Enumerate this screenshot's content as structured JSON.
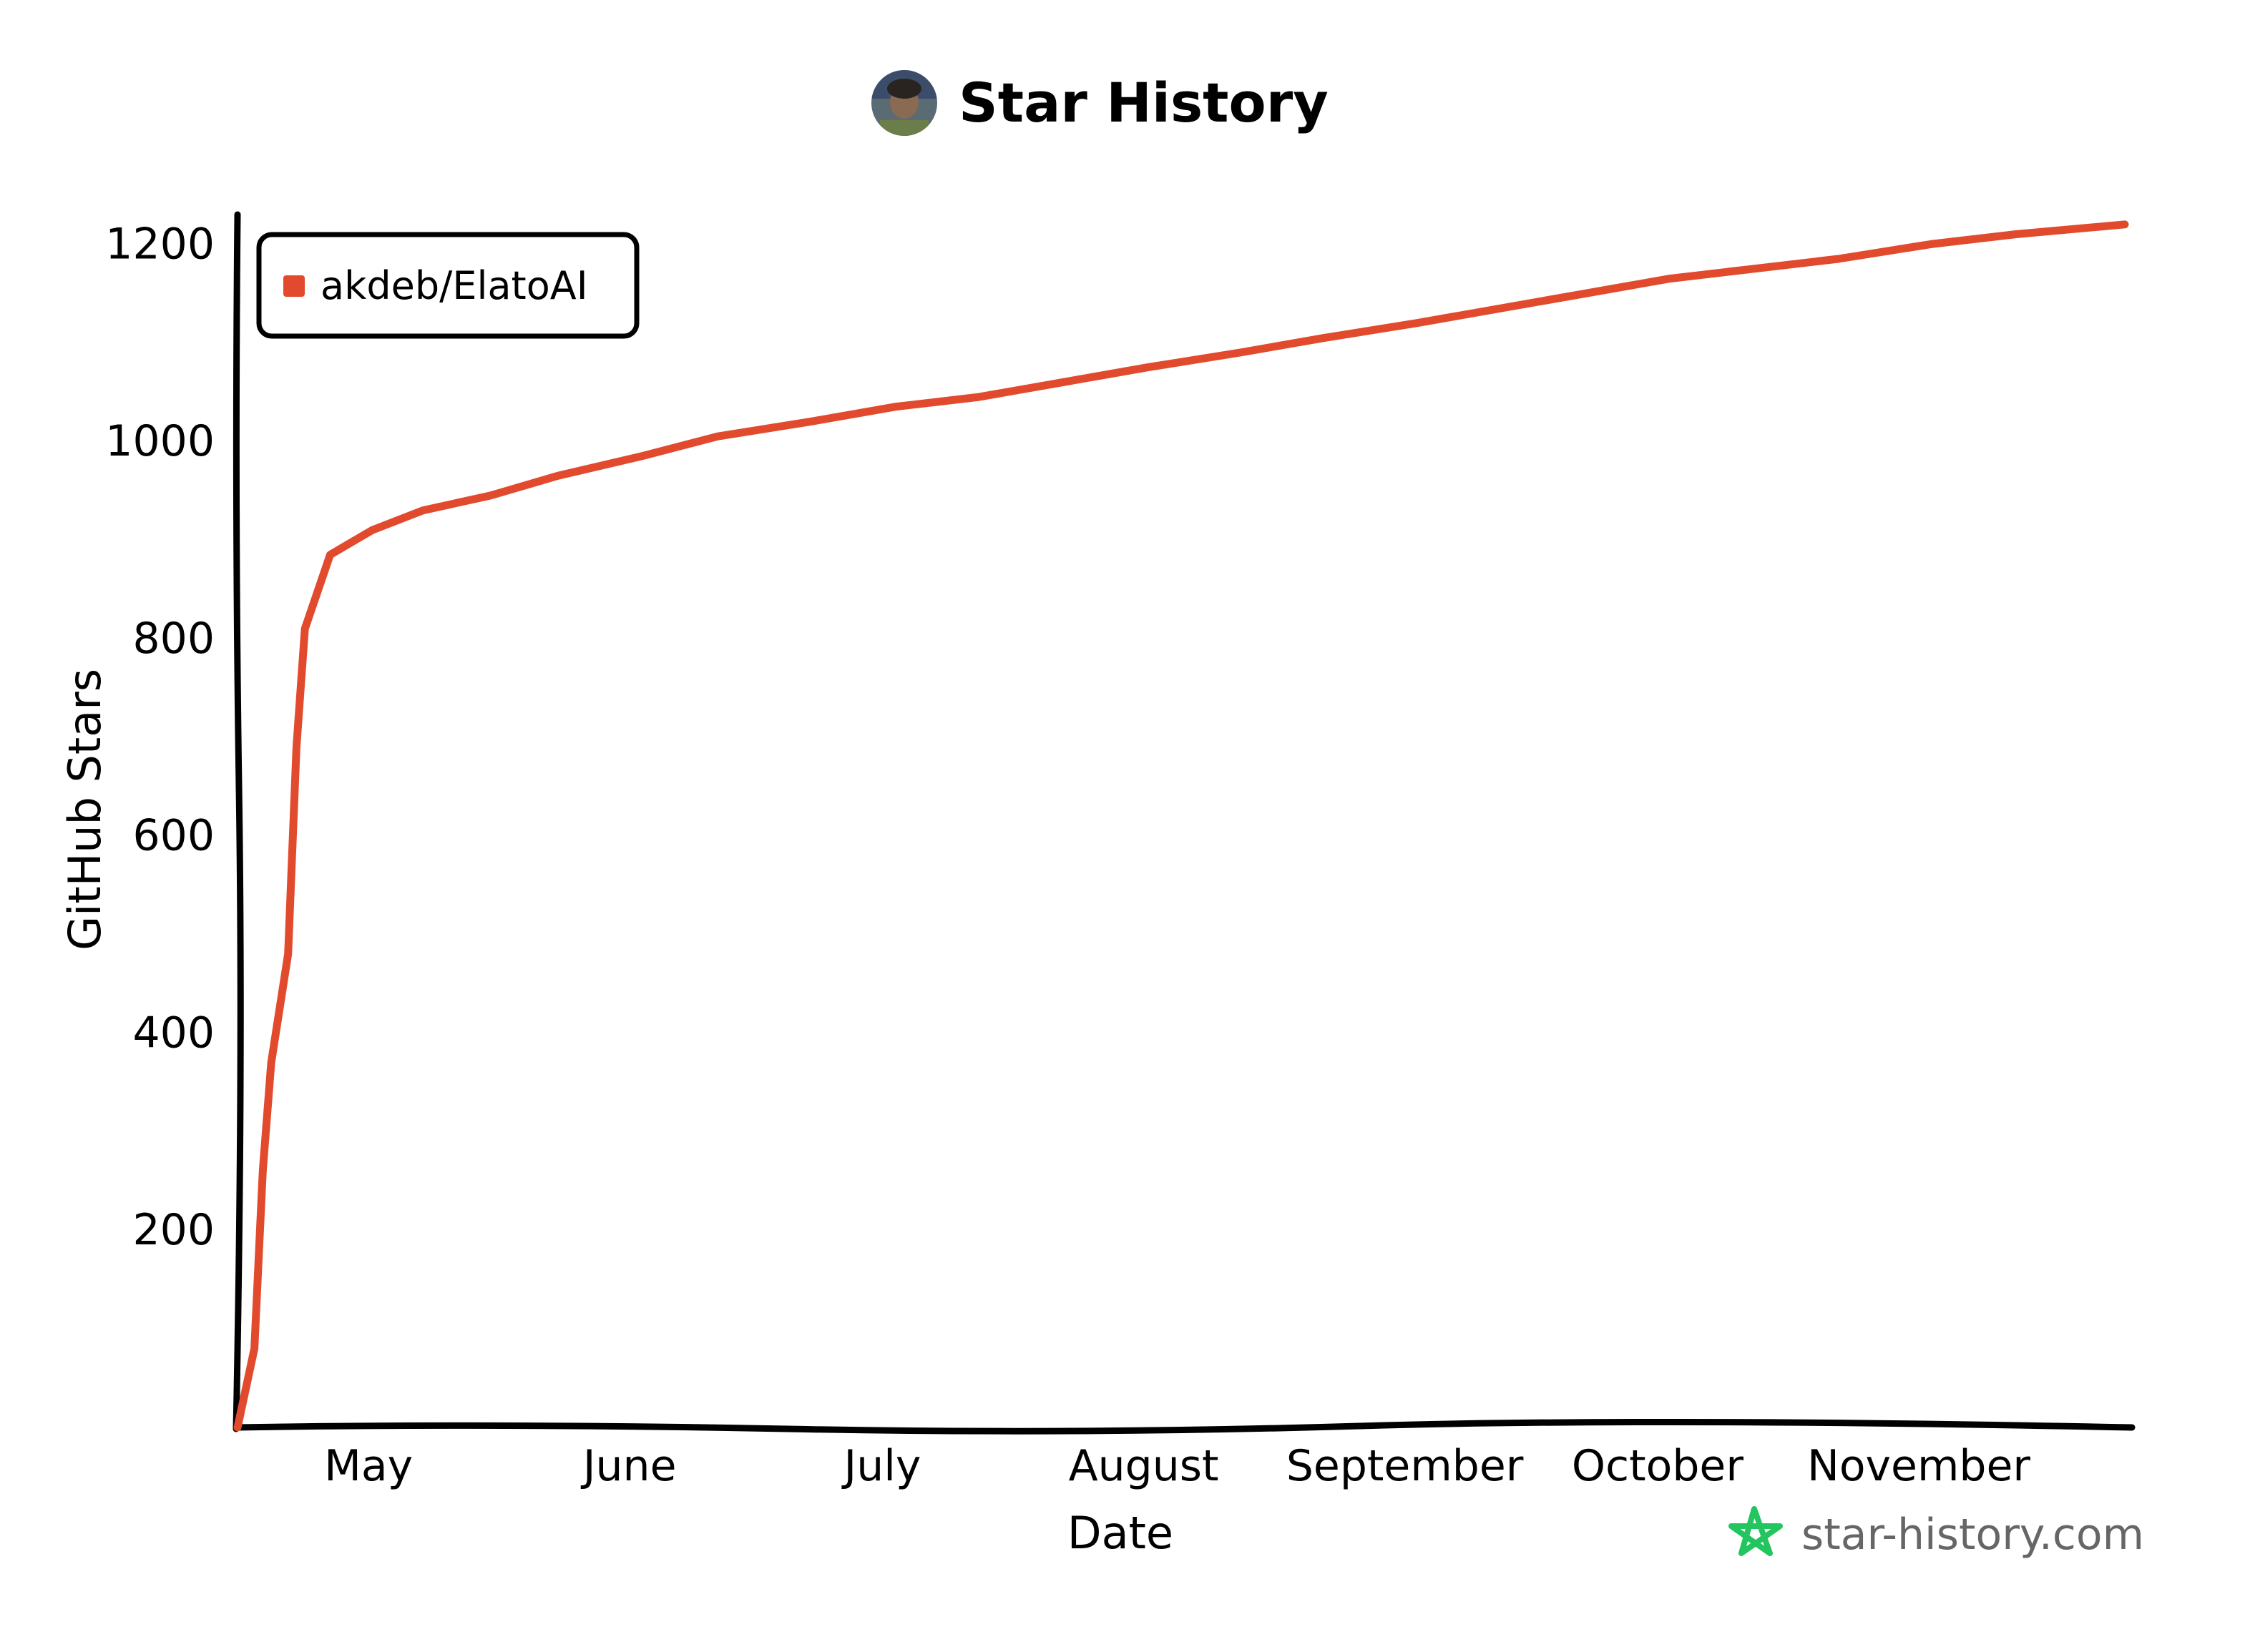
{
  "header": {
    "title": "Star History"
  },
  "brand": {
    "text": "star-history.com",
    "icon": "star-outline-icon",
    "icon_color": "#22c55e"
  },
  "avatar": {
    "icon": "user-avatar-photo"
  },
  "colors": {
    "series": "#e24a2e",
    "axis": "#000000",
    "background": "#ffffff"
  },
  "chart_data": {
    "type": "line",
    "title": "Star History",
    "xlabel": "Date",
    "ylabel": "GitHub Stars",
    "x_type": "date",
    "xlim": [
      "2024-04-18",
      "2024-11-28"
    ],
    "ylim": [
      0,
      1230
    ],
    "x_ticks": [
      {
        "label": "May",
        "date": "2024-05-01"
      },
      {
        "label": "June",
        "date": "2024-06-01"
      },
      {
        "label": "July",
        "date": "2024-07-01"
      },
      {
        "label": "August",
        "date": "2024-08-01"
      },
      {
        "label": "September",
        "date": "2024-09-01"
      },
      {
        "label": "October",
        "date": "2024-10-01"
      },
      {
        "label": "November",
        "date": "2024-11-01"
      }
    ],
    "y_ticks": [
      200,
      400,
      600,
      800,
      1000,
      1200
    ],
    "grid": false,
    "legend_position": "top-left",
    "series": [
      {
        "name": "akdeb/ElatoAI",
        "color": "#e24a2e",
        "points": [
          {
            "x": "2024-04-18",
            "y": 0
          },
          {
            "x": "2024-04-20",
            "y": 80
          },
          {
            "x": "2024-04-21",
            "y": 260
          },
          {
            "x": "2024-04-22",
            "y": 370
          },
          {
            "x": "2024-04-24",
            "y": 480
          },
          {
            "x": "2024-04-25",
            "y": 690
          },
          {
            "x": "2024-04-26",
            "y": 810
          },
          {
            "x": "2024-04-29",
            "y": 885
          },
          {
            "x": "2024-05-04",
            "y": 910
          },
          {
            "x": "2024-05-10",
            "y": 930
          },
          {
            "x": "2024-05-18",
            "y": 945
          },
          {
            "x": "2024-05-26",
            "y": 965
          },
          {
            "x": "2024-06-05",
            "y": 985
          },
          {
            "x": "2024-06-14",
            "y": 1005
          },
          {
            "x": "2024-06-25",
            "y": 1020
          },
          {
            "x": "2024-07-05",
            "y": 1035
          },
          {
            "x": "2024-07-15",
            "y": 1045
          },
          {
            "x": "2024-07-25",
            "y": 1060
          },
          {
            "x": "2024-08-04",
            "y": 1075
          },
          {
            "x": "2024-08-15",
            "y": 1090
          },
          {
            "x": "2024-08-25",
            "y": 1105
          },
          {
            "x": "2024-09-05",
            "y": 1120
          },
          {
            "x": "2024-09-15",
            "y": 1135
          },
          {
            "x": "2024-09-25",
            "y": 1150
          },
          {
            "x": "2024-10-05",
            "y": 1165
          },
          {
            "x": "2024-10-15",
            "y": 1175
          },
          {
            "x": "2024-10-25",
            "y": 1185
          },
          {
            "x": "2024-11-05",
            "y": 1200
          },
          {
            "x": "2024-11-15",
            "y": 1210
          },
          {
            "x": "2024-11-28",
            "y": 1220
          }
        ]
      }
    ]
  }
}
